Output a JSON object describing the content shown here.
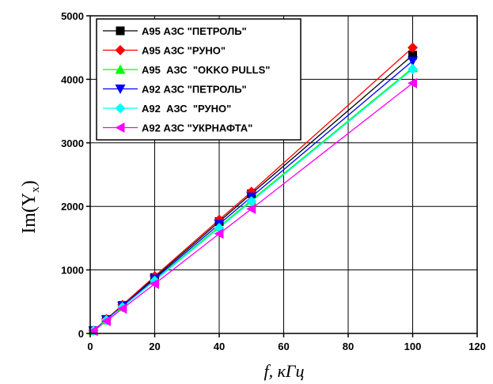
{
  "chart_data": {
    "type": "line",
    "xlabel": "f, кГц",
    "ylabel": {
      "main": "Im",
      "symbol": "Y",
      "subscript": "x"
    },
    "xlim": [
      0,
      120
    ],
    "ylim": [
      0,
      5000
    ],
    "x_ticks": [
      0,
      20,
      40,
      60,
      80,
      100,
      120
    ],
    "y_ticks": [
      0,
      1000,
      2000,
      3000,
      4000,
      5000
    ],
    "grid": true,
    "legend_position": "top-left",
    "series": [
      {
        "name": "A95 АЗС \"ПЕТРОЛЬ\"",
        "color": "#000000",
        "marker": "square",
        "x": [
          1,
          5,
          10,
          20,
          40,
          50,
          100
        ],
        "y": [
          44,
          220,
          440,
          880,
          1760,
          2200,
          4380
        ]
      },
      {
        "name": "A95 АЗС \"РУНО\"",
        "color": "#ff0000",
        "marker": "diamond",
        "x": [
          1,
          5,
          10,
          20,
          40,
          50,
          100
        ],
        "y": [
          45,
          225,
          450,
          900,
          1790,
          2230,
          4500
        ]
      },
      {
        "name": "A95  АЗС  \"OKKO PULLS\"",
        "color": "#00ff00",
        "marker": "triangle-up",
        "x": [
          1,
          5,
          10,
          20,
          40,
          50,
          100
        ],
        "y": [
          42,
          210,
          420,
          840,
          1680,
          2100,
          4180
        ]
      },
      {
        "name": "A92 АЗС \"ПЕТРОЛЬ\"",
        "color": "#0000ff",
        "marker": "triangle-down",
        "x": [
          1,
          5,
          10,
          20,
          40,
          50,
          100
        ],
        "y": [
          43,
          215,
          430,
          860,
          1720,
          2150,
          4290
        ]
      },
      {
        "name": "A92  АЗС  \"РУНО\"",
        "color": "#00ffff",
        "marker": "diamond",
        "x": [
          1,
          5,
          10,
          20,
          40,
          50,
          100
        ],
        "y": [
          41,
          208,
          415,
          830,
          1660,
          2080,
          4160
        ]
      },
      {
        "name": "A92 АЗС \"УКРНАФТА\"",
        "color": "#ff00ff",
        "marker": "triangle-left",
        "x": [
          1,
          5,
          10,
          20,
          40,
          50,
          100
        ],
        "y": [
          39,
          195,
          390,
          780,
          1570,
          1960,
          3940
        ]
      }
    ]
  }
}
